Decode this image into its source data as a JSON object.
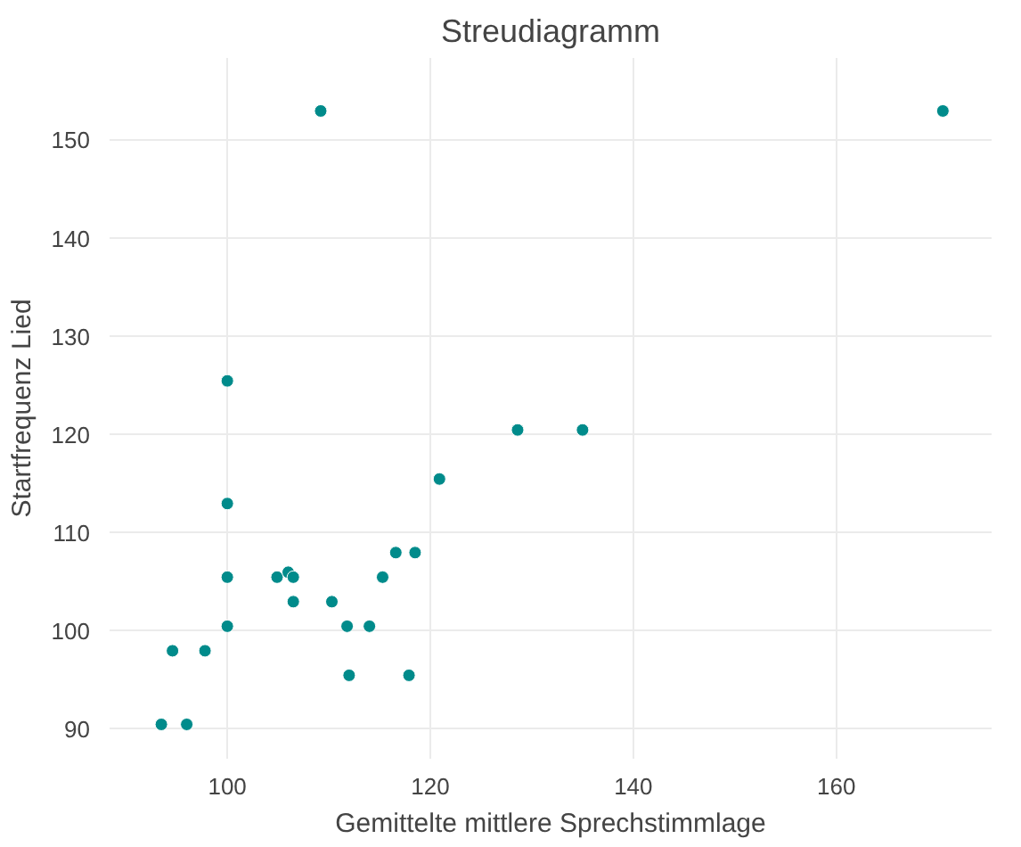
{
  "chart_data": {
    "type": "scatter",
    "title": "Streudiagramm",
    "xlabel": "Gemittelte mittlere Sprechstimmlage",
    "ylabel": "Startfrequenz Lied",
    "x": [
      93.5,
      96,
      94.6,
      97.8,
      100,
      100,
      100,
      100,
      109.2,
      104.9,
      106,
      106.5,
      106.5,
      110.3,
      111.8,
      112,
      114,
      115.3,
      116.6,
      118.5,
      117.9,
      120.9,
      128.6,
      135,
      170.5
    ],
    "series": [
      {
        "color": "#008b8b",
        "values": [
          90.5,
          90.5,
          98,
          98,
          100.5,
          105.5,
          113,
          125.5,
          153,
          105.5,
          106,
          105.5,
          103,
          103,
          100.5,
          95.5,
          100.5,
          105.5,
          108,
          108,
          95.5,
          115.5,
          120.5,
          120.5,
          153
        ]
      }
    ],
    "xlim": [
      88.4,
      175.3
    ],
    "ylim": [
      87,
      158.4
    ],
    "xticks": [
      100,
      120,
      140,
      160
    ],
    "yticks": [
      90,
      100,
      110,
      120,
      130,
      140,
      150
    ],
    "grid": true,
    "marker": "circle"
  }
}
